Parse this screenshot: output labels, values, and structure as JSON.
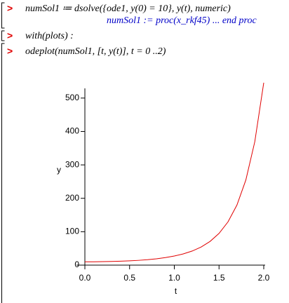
{
  "worksheet": {
    "inputs": [
      "numSol1 ≔ dsolve({ode1, y(0) = 10}, y(t), numeric)",
      "with(plots) :",
      "odeplot(numSol1, [t, y(t)], t = 0 ..2)"
    ],
    "output": "numSol1 := proc(x_rkf45) ... end proc",
    "prompt": ">"
  },
  "chart_data": {
    "type": "line",
    "x_label": "t",
    "y_label": "y",
    "x": [
      0,
      0.1,
      0.2,
      0.3,
      0.4,
      0.5,
      0.6,
      0.7,
      0.8,
      0.9,
      1.0,
      1.1,
      1.2,
      1.3,
      1.4,
      1.5,
      1.6,
      1.7,
      1.8,
      1.9,
      2.0
    ],
    "series": [
      {
        "color": "#e00000",
        "values": [
          10,
          10.1,
          10.4,
          10.9,
          11.7,
          12.8,
          14.3,
          16.3,
          19,
          22.5,
          27.2,
          33.6,
          42.2,
          54.2,
          71,
          94.9,
          129.3,
          179.7,
          254.9,
          369.6,
          546
        ]
      }
    ],
    "xlim": [
      0,
      2
    ],
    "ylim": [
      0,
      550
    ],
    "xticks": [
      {
        "value": 0,
        "label": "0.0"
      },
      {
        "value": 0.5,
        "label": "0.5"
      },
      {
        "value": 1,
        "label": "1.0"
      },
      {
        "value": 1.5,
        "label": "1.5"
      },
      {
        "value": 2,
        "label": "2.0"
      }
    ],
    "yticks": [
      0,
      100,
      200,
      300,
      400,
      500
    ]
  }
}
